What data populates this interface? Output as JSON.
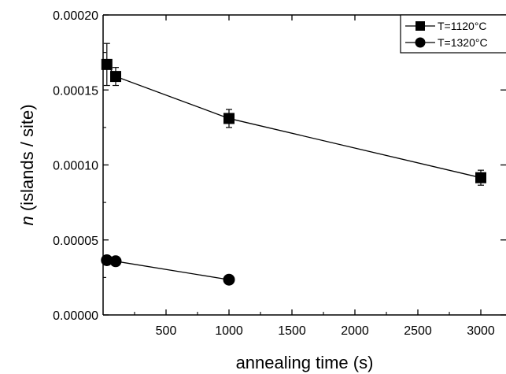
{
  "chart_data": {
    "type": "scatter",
    "xlabel": "annealing time (s)",
    "ylabel_italic": "n",
    "ylabel_rest": " (islands / site)",
    "xlim": [
      0,
      3200
    ],
    "ylim": [
      0,
      0.0002
    ],
    "x_ticks": [
      500,
      1000,
      1500,
      2000,
      2500,
      3000
    ],
    "x_tick_labels": [
      "500",
      "1000",
      "1500",
      "2000",
      "2500",
      "3000"
    ],
    "y_ticks": [
      0,
      5e-05,
      0.0001,
      0.00015,
      0.0002
    ],
    "y_tick_labels": [
      "0.00000",
      "0.00005",
      "0.00010",
      "0.00015",
      "0.00020"
    ],
    "grid": false,
    "legend_position": "top-right",
    "series": [
      {
        "name": "T=1120°C",
        "marker": "square",
        "color": "#000000",
        "x": [
          30,
          100,
          1000,
          3000
        ],
        "y": [
          0.000167,
          0.000159,
          0.000131,
          9.15e-05
        ],
        "err": [
          1.4e-05,
          6e-06,
          6e-06,
          5e-06
        ]
      },
      {
        "name": "T=1320°C",
        "marker": "circle",
        "color": "#000000",
        "x": [
          30,
          100,
          1000
        ],
        "y": [
          3.65e-05,
          3.58e-05,
          2.35e-05
        ],
        "err": [
          0,
          0,
          0
        ]
      }
    ]
  }
}
